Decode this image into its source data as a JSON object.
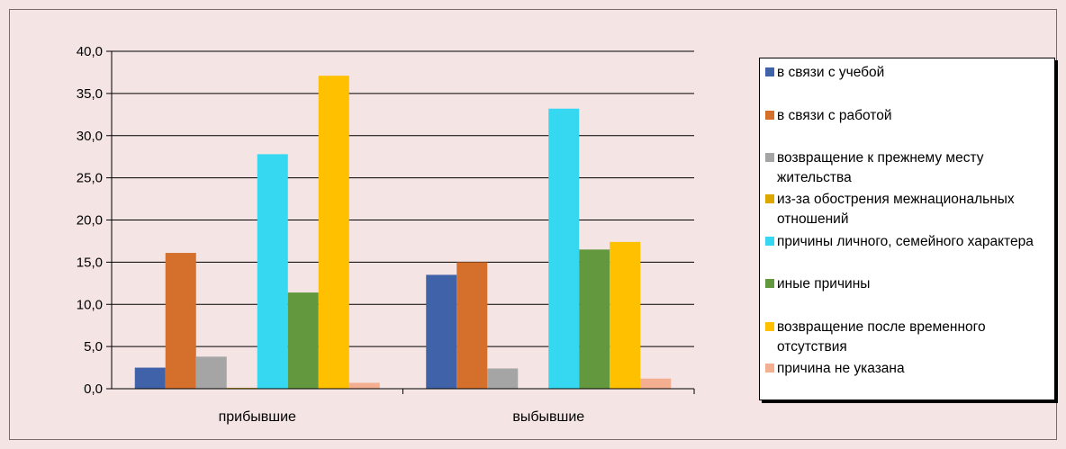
{
  "chart_data": {
    "type": "bar",
    "categories": [
      "прибывшие",
      "выбывшие"
    ],
    "series": [
      {
        "name": "в связи  с учебой",
        "color": "#4062a8",
        "values": [
          2.5,
          13.5
        ]
      },
      {
        "name": "в связи с работой",
        "color": "#d4702c",
        "values": [
          16.1,
          15.0
        ]
      },
      {
        "name": "возвращение к прежнему месту жительства",
        "color": "#a5a5a5",
        "values": [
          3.8,
          2.4
        ]
      },
      {
        "name": "из-за обострения межнациональных отношений",
        "color": "#dca800",
        "values": [
          0.1,
          0.0
        ]
      },
      {
        "name": "причины личного, семейного характера",
        "color": "#35d8f0",
        "values": [
          27.8,
          33.2
        ]
      },
      {
        "name": "иные причины",
        "color": "#63983e",
        "values": [
          11.4,
          16.5
        ]
      },
      {
        "name": "возвращение после временного отсутствия",
        "color": "#ffc000",
        "values": [
          37.1,
          17.4
        ]
      },
      {
        "name": "причина не указана",
        "color": "#f4ae90",
        "values": [
          0.7,
          1.2
        ]
      }
    ],
    "y_ticks": [
      "0,0",
      "5,0",
      "10,0",
      "15,0",
      "20,0",
      "25,0",
      "30,0",
      "35,0",
      "40,0"
    ],
    "ylim": [
      0,
      40
    ],
    "grid": true,
    "legend_position": "right"
  }
}
